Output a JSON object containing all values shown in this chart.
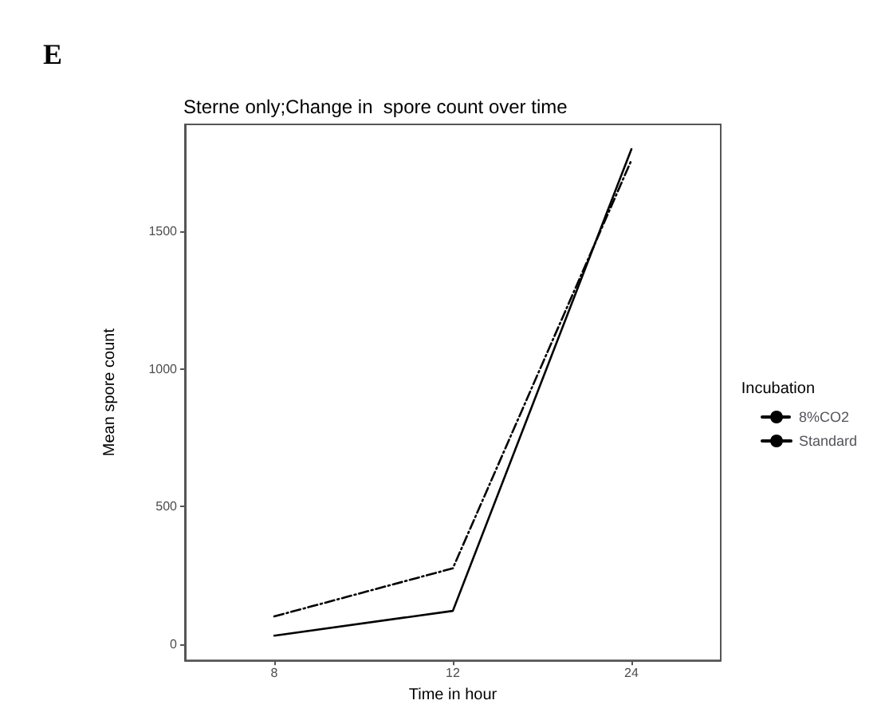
{
  "chart_data": {
    "type": "line",
    "title": "Sterne only;Change in  spore count over time",
    "xlabel": "Time in hour",
    "ylabel": "Mean spore count",
    "legend_title": "Incubation",
    "annotations": [
      "E"
    ],
    "categories": [
      "8",
      "12",
      "24"
    ],
    "series": [
      {
        "name": "8%CO2",
        "color": "#000000",
        "line_style": "dashed",
        "values": [
          100,
          275,
          1760
        ]
      },
      {
        "name": "Standard",
        "color": "#000000",
        "line_style": "solid",
        "values": [
          30,
          120,
          1800
        ]
      }
    ],
    "ylim": [
      -60,
      1890
    ],
    "yticks": [
      0,
      500,
      1000,
      1500
    ],
    "grid": false,
    "legend": "right",
    "marker": "none"
  }
}
